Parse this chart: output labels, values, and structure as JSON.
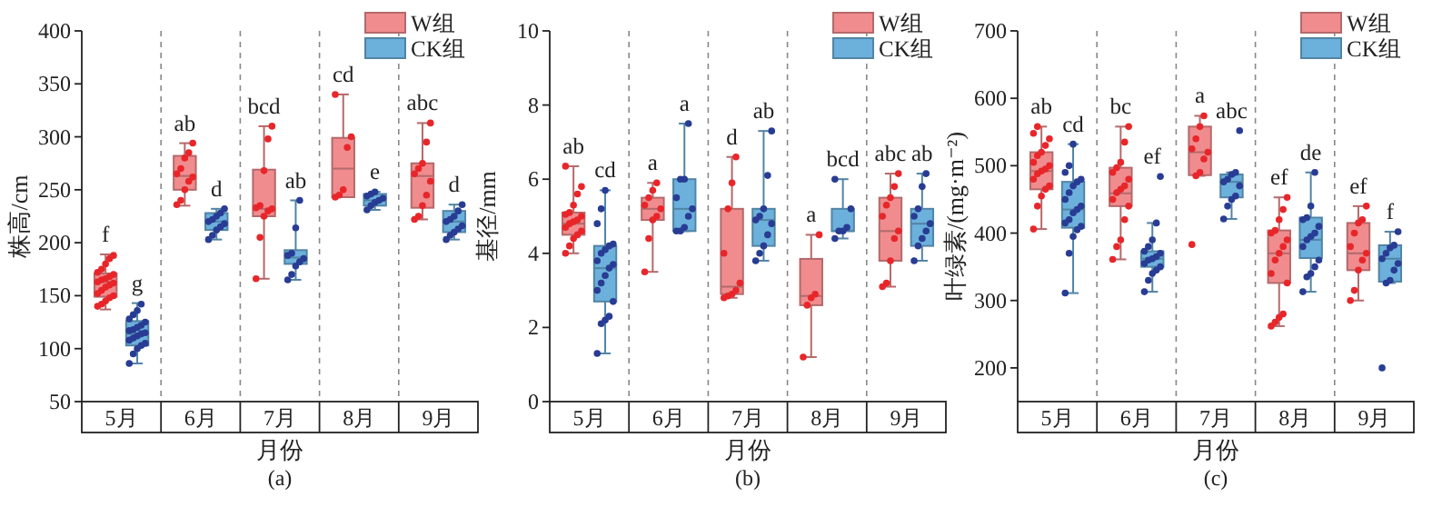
{
  "chart_data": [
    {
      "type": "box",
      "categories": [
        "5月",
        "6月",
        "7月",
        "8月",
        "9月"
      ],
      "xlabel": "月份",
      "ylabel": "株高/cm",
      "ylim": [
        50,
        400
      ],
      "yticks": [
        50,
        100,
        150,
        200,
        250,
        300,
        350,
        400
      ],
      "legend": "top right",
      "marker": "circle",
      "annotations": [
        "f",
        "g",
        "ab",
        "d",
        "bcd",
        "ab",
        "cd",
        "e",
        "abc",
        "d",
        "(a)"
      ],
      "series": [
        {
          "name": "W组",
          "color": "#f08c8e",
          "boxes": [
            {
              "low": 137,
              "q1": 149,
              "median": 163,
              "q3": 171,
              "high": 189
            },
            {
              "low": 235,
              "q1": 250,
              "median": 263,
              "q3": 282,
              "high": 294
            },
            {
              "low": 166,
              "q1": 225,
              "median": 232,
              "q3": 269,
              "high": 310
            },
            {
              "low": 243,
              "q1": 243,
              "median": 270,
              "q3": 299,
              "high": 340
            },
            {
              "low": 222,
              "q1": 233,
              "median": 263,
              "q3": 275,
              "high": 313
            }
          ]
        },
        {
          "name": "CK组",
          "color": "#6cb0dc",
          "boxes": [
            {
              "low": 86,
              "q1": 103,
              "median": 114,
              "q3": 126,
              "high": 143
            },
            {
              "low": 203,
              "q1": 212,
              "median": 220,
              "q3": 228,
              "high": 232
            },
            {
              "low": 165,
              "q1": 180,
              "median": 186,
              "q3": 193,
              "high": 240
            },
            {
              "low": 231,
              "q1": 235,
              "median": 240,
              "q3": 246,
              "high": 248
            },
            {
              "low": 203,
              "q1": 210,
              "median": 220,
              "q3": 230,
              "high": 236
            }
          ]
        },
        {
          "type": "scatter",
          "color": "#e8262a",
          "x": [
            "5月",
            "5月",
            "5月",
            "5月",
            "5月",
            "5月",
            "5月",
            "5月",
            "5月",
            "5月",
            "5月",
            "5月",
            "5月",
            "5月",
            "5月",
            "5月",
            "5月",
            "5月",
            "5月",
            "5月",
            "6月",
            "6月",
            "6月",
            "6月",
            "6月",
            "6月",
            "6月",
            "6月",
            "6月",
            "6月",
            "7月",
            "7月",
            "7月",
            "7月",
            "7月",
            "7月",
            "7月",
            "7月",
            "7月",
            "7月",
            "8月",
            "8月",
            "8月",
            "8月",
            "8月",
            "8月",
            "9月",
            "9月",
            "9月",
            "9月",
            "9月",
            "9月",
            "9月",
            "9月",
            "9月",
            "9月"
          ],
          "values": [
            140,
            142,
            145,
            148,
            150,
            152,
            155,
            158,
            160,
            162,
            163,
            165,
            166,
            168,
            170,
            172,
            175,
            180,
            185,
            188,
            236,
            240,
            250,
            258,
            262,
            265,
            270,
            280,
            285,
            294,
            166,
            205,
            225,
            230,
            232,
            233,
            235,
            268,
            298,
            310,
            243,
            245,
            250,
            290,
            300,
            340,
            222,
            225,
            235,
            245,
            258,
            265,
            270,
            275,
            295,
            313
          ]
        },
        {
          "type": "scatter",
          "color": "#283c94",
          "x": [
            "5月",
            "5月",
            "5月",
            "5月",
            "5月",
            "5月",
            "5月",
            "5月",
            "5月",
            "5月",
            "5月",
            "5月",
            "5月",
            "5月",
            "5月",
            "5月",
            "5月",
            "5月",
            "5月",
            "6月",
            "6月",
            "6月",
            "6月",
            "6月",
            "6月",
            "6月",
            "6月",
            "6月",
            "6月",
            "7月",
            "7月",
            "7月",
            "7月",
            "7月",
            "7月",
            "7月",
            "7月",
            "7月",
            "8月",
            "8月",
            "8月",
            "8月",
            "8月",
            "8月",
            "8月",
            "8月",
            "9月",
            "9月",
            "9月",
            "9月",
            "9月",
            "9月",
            "9月",
            "9月",
            "9月",
            "9月"
          ],
          "values": [
            86,
            95,
            100,
            103,
            105,
            108,
            110,
            112,
            114,
            115,
            117,
            118,
            120,
            122,
            125,
            128,
            132,
            136,
            142,
            203,
            207,
            212,
            215,
            218,
            220,
            222,
            225,
            228,
            232,
            165,
            170,
            178,
            182,
            185,
            188,
            190,
            214,
            240,
            231,
            235,
            238,
            240,
            242,
            244,
            246,
            248,
            203,
            207,
            210,
            213,
            216,
            220,
            222,
            225,
            230,
            236
          ]
        }
      ]
    },
    {
      "type": "box",
      "categories": [
        "5月",
        "6月",
        "7月",
        "8月",
        "9月"
      ],
      "xlabel": "月份",
      "ylabel": "基径/mm",
      "ylim": [
        0,
        10
      ],
      "yticks": [
        0,
        2,
        4,
        6,
        8,
        10
      ],
      "legend": "top right",
      "marker": "circle",
      "annotations": [
        "ab",
        "cd",
        "a",
        "a",
        "d",
        "ab",
        "a",
        "bcd",
        "abc",
        "ab",
        "(b)"
      ],
      "series": [
        {
          "name": "W组",
          "color": "#f08c8e",
          "boxes": [
            {
              "low": 4.0,
              "q1": 4.5,
              "median": 4.8,
              "q3": 5.1,
              "high": 6.35
            },
            {
              "low": 3.5,
              "q1": 4.9,
              "median": 5.2,
              "q3": 5.5,
              "high": 5.9
            },
            {
              "low": 2.8,
              "q1": 2.9,
              "median": 3.1,
              "q3": 5.2,
              "high": 6.6
            },
            {
              "low": 1.2,
              "q1": 2.6,
              "median": 2.85,
              "q3": 3.85,
              "high": 4.5
            },
            {
              "low": 3.1,
              "q1": 3.8,
              "median": 4.6,
              "q3": 5.5,
              "high": 6.15
            }
          ]
        },
        {
          "name": "CK组",
          "color": "#6cb0dc",
          "boxes": [
            {
              "low": 1.3,
              "q1": 2.7,
              "median": 3.6,
              "q3": 4.2,
              "high": 5.7
            },
            {
              "low": 4.6,
              "q1": 4.6,
              "median": 5.2,
              "q3": 6.0,
              "high": 7.5
            },
            {
              "low": 3.8,
              "q1": 4.2,
              "median": 4.9,
              "q3": 5.2,
              "high": 7.3
            },
            {
              "low": 4.4,
              "q1": 4.6,
              "median": 4.6,
              "q3": 5.2,
              "high": 6.0
            },
            {
              "low": 3.8,
              "q1": 4.2,
              "median": 4.8,
              "q3": 5.2,
              "high": 6.15
            }
          ]
        },
        {
          "type": "scatter",
          "color": "#e8262a",
          "x": [
            "5月",
            "5月",
            "5月",
            "5月",
            "5月",
            "5月",
            "5月",
            "5月",
            "5月",
            "5月",
            "5月",
            "5月",
            "5月",
            "5月",
            "5月",
            "5月",
            "6月",
            "6月",
            "6月",
            "6月",
            "6月",
            "6月",
            "6月",
            "6月",
            "6月",
            "7月",
            "7月",
            "7月",
            "7月",
            "7月",
            "7月",
            "7月",
            "7月",
            "7月",
            "8月",
            "8月",
            "8月",
            "8月",
            "8月",
            "9月",
            "9月",
            "9月",
            "9月",
            "9月",
            "9月",
            "9月",
            "9月",
            "9月",
            "9月"
          ],
          "values": [
            4.0,
            4.2,
            4.4,
            4.5,
            4.6,
            4.7,
            4.8,
            4.85,
            4.9,
            5.0,
            5.05,
            5.1,
            5.3,
            5.6,
            5.8,
            6.35,
            3.5,
            4.4,
            4.9,
            5.0,
            5.2,
            5.3,
            5.5,
            5.7,
            5.9,
            2.8,
            2.85,
            2.9,
            3.0,
            3.2,
            4.0,
            5.2,
            5.9,
            6.6,
            1.2,
            2.6,
            2.8,
            2.9,
            4.5,
            3.1,
            3.2,
            3.8,
            4.4,
            4.6,
            5.0,
            5.3,
            5.5,
            5.8,
            6.15
          ]
        },
        {
          "type": "scatter",
          "color": "#283c94",
          "x": [
            "5月",
            "5月",
            "5月",
            "5月",
            "5月",
            "5月",
            "5月",
            "5月",
            "5月",
            "5月",
            "5月",
            "5月",
            "5月",
            "5月",
            "5月",
            "5月",
            "5月",
            "5月",
            "6月",
            "6月",
            "6月",
            "6月",
            "6月",
            "6月",
            "6月",
            "6月",
            "6月",
            "7月",
            "7月",
            "7月",
            "7月",
            "7月",
            "7月",
            "7月",
            "7月",
            "7月",
            "7月",
            "8月",
            "8月",
            "8月",
            "8月",
            "8月",
            "8月",
            "9月",
            "9月",
            "9月",
            "9月",
            "9月",
            "9月",
            "9月",
            "9月",
            "9月"
          ],
          "values": [
            1.3,
            2.1,
            2.2,
            2.3,
            2.7,
            3.0,
            3.2,
            3.4,
            3.6,
            3.7,
            3.8,
            4.0,
            4.1,
            4.2,
            4.25,
            4.8,
            5.2,
            5.7,
            4.6,
            4.6,
            4.7,
            5.0,
            5.2,
            5.5,
            6.0,
            6.0,
            7.5,
            3.8,
            4.0,
            4.2,
            4.5,
            4.8,
            4.9,
            5.0,
            5.2,
            6.1,
            7.3,
            4.4,
            4.6,
            4.6,
            4.7,
            5.2,
            6.0,
            3.8,
            4.2,
            4.4,
            4.6,
            4.8,
            5.0,
            5.2,
            5.8,
            6.15
          ]
        }
      ]
    },
    {
      "type": "box",
      "categories": [
        "5月",
        "6月",
        "7月",
        "8月",
        "9月"
      ],
      "xlabel": "月份",
      "ylabel": "叶绿素/(mg·m⁻²)",
      "ylim": [
        150,
        700
      ],
      "yticks": [
        200,
        300,
        400,
        500,
        600,
        700
      ],
      "legend": "top right",
      "marker": "circle",
      "annotations": [
        "ab",
        "cd",
        "bc",
        "ef",
        "a",
        "abc",
        "ef",
        "de",
        "ef",
        "f",
        "(c)"
      ],
      "series": [
        {
          "name": "W组",
          "color": "#f08c8e",
          "boxes": [
            {
              "low": 406,
              "q1": 465,
              "median": 492,
              "q3": 520,
              "high": 558
            },
            {
              "low": 361,
              "q1": 440,
              "median": 459,
              "q3": 497,
              "high": 558
            },
            {
              "low": 485,
              "q1": 486,
              "median": 520,
              "q3": 558,
              "high": 574
            },
            {
              "low": 262,
              "q1": 326,
              "median": 370,
              "q3": 404,
              "high": 453
            },
            {
              "low": 300,
              "q1": 345,
              "median": 370,
              "q3": 415,
              "high": 440
            }
          ]
        },
        {
          "name": "CK组",
          "color": "#6cb0dc",
          "boxes": [
            {
              "low": 311,
              "q1": 408,
              "median": 435,
              "q3": 476,
              "high": 532
            },
            {
              "low": 313,
              "q1": 350,
              "median": 362,
              "q3": 373,
              "high": 415
            },
            {
              "low": 421,
              "q1": 453,
              "median": 476,
              "q3": 487,
              "high": 490
            },
            {
              "low": 313,
              "q1": 363,
              "median": 390,
              "q3": 423,
              "high": 490
            },
            {
              "low": 326,
              "q1": 328,
              "median": 362,
              "q3": 382,
              "high": 402
            }
          ]
        },
        {
          "type": "scatter",
          "color": "#e8262a",
          "x": [
            "5月",
            "5月",
            "5月",
            "5月",
            "5月",
            "5月",
            "5月",
            "5月",
            "5月",
            "5月",
            "5月",
            "5月",
            "5月",
            "5月",
            "5月",
            "5月",
            "5月",
            "6月",
            "6月",
            "6月",
            "6月",
            "6月",
            "6月",
            "6月",
            "6月",
            "6月",
            "6月",
            "6月",
            "6月",
            "6月",
            "6月",
            "6月",
            "7月",
            "7月",
            "7月",
            "7月",
            "7月",
            "7月",
            "7月",
            "7月",
            "7月",
            "8月",
            "8月",
            "8月",
            "8月",
            "8月",
            "8月",
            "8月",
            "8月",
            "8月",
            "8月",
            "8月",
            "8月",
            "8月",
            "8月",
            "8月",
            "9月",
            "9月",
            "9月",
            "9月",
            "9月",
            "9月",
            "9月",
            "9月",
            "9月",
            "9月"
          ],
          "values": [
            406,
            440,
            455,
            465,
            470,
            480,
            488,
            492,
            495,
            500,
            505,
            515,
            520,
            530,
            540,
            548,
            558,
            361,
            380,
            390,
            420,
            440,
            450,
            460,
            465,
            470,
            480,
            490,
            497,
            505,
            535,
            558,
            383,
            485,
            490,
            510,
            520,
            525,
            540,
            558,
            574,
            262,
            268,
            275,
            280,
            326,
            340,
            360,
            370,
            380,
            390,
            400,
            404,
            420,
            435,
            453,
            300,
            315,
            345,
            360,
            370,
            380,
            400,
            415,
            420,
            440
          ]
        },
        {
          "type": "scatter",
          "color": "#283c94",
          "x": [
            "5月",
            "5月",
            "5月",
            "5月",
            "5月",
            "5月",
            "5月",
            "5月",
            "5月",
            "5月",
            "5月",
            "5月",
            "5月",
            "5月",
            "5月",
            "5月",
            "5月",
            "5月",
            "6月",
            "6月",
            "6月",
            "6月",
            "6月",
            "6月",
            "6月",
            "6月",
            "6月",
            "6月",
            "6月",
            "6月",
            "6月",
            "6月",
            "6月",
            "7月",
            "7月",
            "7月",
            "7月",
            "7月",
            "7月",
            "7月",
            "7月",
            "7月",
            "7月",
            "8月",
            "8月",
            "8月",
            "8月",
            "8月",
            "8月",
            "8月",
            "8月",
            "8月",
            "8月",
            "8月",
            "8月",
            "8月",
            "8月",
            "9月",
            "9月",
            "9月",
            "9月",
            "9月",
            "9月",
            "9月",
            "9月",
            "9月",
            "9月"
          ],
          "values": [
            311,
            370,
            395,
            405,
            410,
            415,
            420,
            430,
            435,
            440,
            450,
            460,
            470,
            476,
            480,
            490,
            500,
            532,
            313,
            330,
            340,
            345,
            350,
            355,
            360,
            362,
            365,
            370,
            373,
            380,
            390,
            415,
            484,
            421,
            440,
            450,
            455,
            470,
            476,
            480,
            487,
            490,
            552,
            313,
            335,
            340,
            350,
            360,
            380,
            390,
            395,
            400,
            410,
            420,
            423,
            440,
            490,
            200,
            326,
            330,
            345,
            355,
            362,
            370,
            378,
            382,
            402
          ]
        }
      ]
    }
  ]
}
